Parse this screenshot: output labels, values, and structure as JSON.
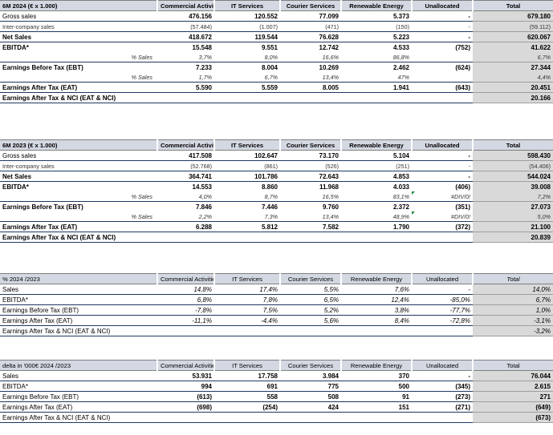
{
  "headers": [
    "Commercial Activities",
    "IT Services",
    "Courier Services",
    "Renewable Energy",
    "Unallocated",
    "Total"
  ],
  "table2024": {
    "title": "6M 2024  (€ x 1.000)",
    "rows": [
      {
        "label": "Gross sales",
        "v": [
          "476.156",
          "120.552",
          "77.099",
          "5.373",
          "-",
          "679.180"
        ]
      },
      {
        "label": "Inter-company sales",
        "v": [
          "(57.484)",
          "(1.007)",
          "(471)",
          "(150)",
          "-",
          "(59.112)"
        ]
      },
      {
        "label": "Net Sales",
        "v": [
          "418.672",
          "119.544",
          "76.628",
          "5.223",
          "-",
          "620.067"
        ]
      },
      {
        "label": "EBITDA*",
        "v": [
          "15.548",
          "9.551",
          "12.742",
          "4.533",
          "(752)",
          "41.622"
        ]
      },
      {
        "label": "% Sales",
        "v": [
          "3,7%",
          "8,0%",
          "16,6%",
          "86,8%",
          "",
          "6,7%"
        ]
      },
      {
        "label": "Earnings Before Tax (EBT)",
        "v": [
          "7.233",
          "8.004",
          "10.269",
          "2.462",
          "(624)",
          "27.344"
        ]
      },
      {
        "label": "% Sales",
        "v": [
          "1,7%",
          "6,7%",
          "13,4%",
          "47%",
          "",
          "4,4%"
        ]
      },
      {
        "label": "Earnings After Tax (EAT)",
        "v": [
          "5.590",
          "5.559",
          "8.005",
          "1.941",
          "(643)",
          "20.451"
        ]
      },
      {
        "label": "Earnings After Tax & NCI (EAT & NCI)",
        "v": [
          "",
          "",
          "",
          "",
          "",
          "20.166"
        ]
      }
    ]
  },
  "table2023": {
    "title": "6M 2023  (€ x 1.000)",
    "rows": [
      {
        "label": "Gross sales",
        "v": [
          "417.508",
          "102.647",
          "73.170",
          "5.104",
          "-",
          "598.430"
        ]
      },
      {
        "label": "Inter-company sales",
        "v": [
          "(52.768)",
          "(861)",
          "(526)",
          "(251)",
          "-",
          "(54.406)"
        ]
      },
      {
        "label": "Net Sales",
        "v": [
          "364.741",
          "101.786",
          "72.643",
          "4.853",
          "-",
          "544.024"
        ]
      },
      {
        "label": "EBITDA*",
        "v": [
          "14.553",
          "8.860",
          "11.968",
          "4.033",
          "(406)",
          "39.008"
        ]
      },
      {
        "label": "% Sales",
        "v": [
          "4,0%",
          "8,7%",
          "16,5%",
          "83,1%",
          "#DIV/0!",
          "7,2%"
        ]
      },
      {
        "label": "Earnings Before Tax (EBT)",
        "v": [
          "7.846",
          "7.446",
          "9.760",
          "2.372",
          "(351)",
          "27.073"
        ]
      },
      {
        "label": "% Sales",
        "v": [
          "2,2%",
          "7,3%",
          "13,4%",
          "48,9%",
          "#DIV/0!",
          "5,0%"
        ]
      },
      {
        "label": "Earnings After Tax (EAT)",
        "v": [
          "6.288",
          "5.812",
          "7.582",
          "1.790",
          "(372)",
          "21.100"
        ]
      },
      {
        "label": "Earnings After Tax & NCI (EAT & NCI)",
        "v": [
          "",
          "",
          "",
          "",
          "",
          "20.839"
        ]
      }
    ]
  },
  "tablePct": {
    "title": "% 2024 /2023",
    "rows": [
      {
        "label": "Sales",
        "v": [
          "14,8%",
          "17,4%",
          "5,5%",
          "7,6%",
          "-",
          "14,0%"
        ]
      },
      {
        "label": "EBITDA*",
        "v": [
          "6,8%",
          "7,8%",
          "6,5%",
          "12,4%",
          "-85,0%",
          "6,7%"
        ]
      },
      {
        "label": "Earnings Before Tax (EBT)",
        "v": [
          "-7,8%",
          "7,5%",
          "5,2%",
          "3,8%",
          "-77,7%",
          "1,0%"
        ]
      },
      {
        "label": "Earnings After Tax (EAT)",
        "v": [
          "-11,1%",
          "-4,4%",
          "5,6%",
          "8,4%",
          "-72,8%",
          "-3,1%"
        ]
      },
      {
        "label": "Earnings After Tax & NCI (EAT & NCI)",
        "v": [
          "",
          "",
          "",
          "",
          "",
          "-3,2%"
        ]
      }
    ]
  },
  "tableDelta": {
    "title": "delta in '000€  2024 /2023",
    "rows": [
      {
        "label": "Sales",
        "v": [
          "53.931",
          "17.758",
          "3.984",
          "370",
          "-",
          "76.044"
        ]
      },
      {
        "label": "EBITDA*",
        "v": [
          "994",
          "691",
          "775",
          "500",
          "(345)",
          "2.615"
        ]
      },
      {
        "label": "Earnings Before Tax (EBT)",
        "v": [
          "(613)",
          "558",
          "508",
          "91",
          "(273)",
          "271"
        ]
      },
      {
        "label": "Earnings After Tax (EAT)",
        "v": [
          "(698)",
          "(254)",
          "424",
          "151",
          "(271)",
          "(649)"
        ]
      },
      {
        "label": "Earnings After Tax & NCI (EAT & NCI)",
        "v": [
          "",
          "",
          "",
          "",
          "",
          "(673)"
        ]
      }
    ]
  }
}
